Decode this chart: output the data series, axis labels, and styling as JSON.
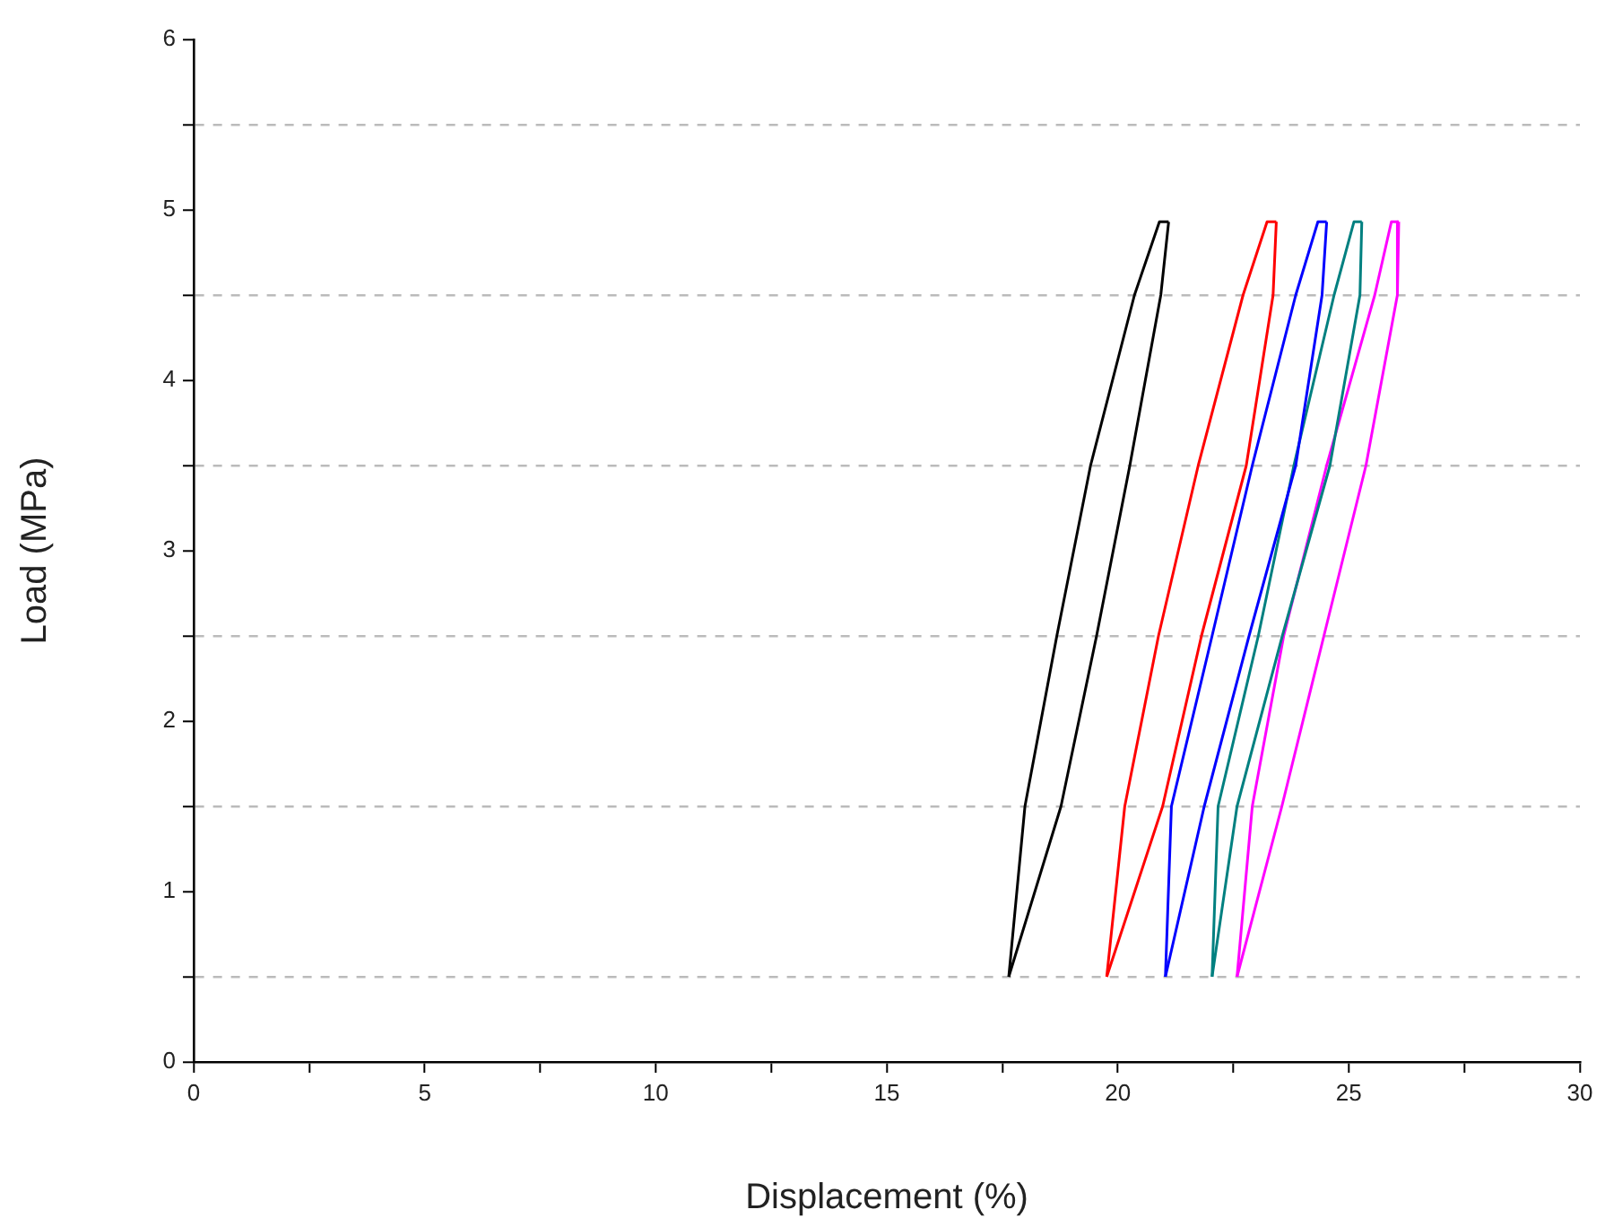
{
  "chart_data": {
    "type": "line",
    "xlabel": "Displacement (%)",
    "ylabel": "Load (MPa)",
    "xlim": [
      0,
      30
    ],
    "ylim": [
      0,
      6
    ],
    "xticks": [
      0,
      {
        "value": 2.5,
        "label": null
      },
      5,
      {
        "value": 7.5,
        "label": null
      },
      10,
      {
        "value": 12.5,
        "label": null
      },
      15,
      {
        "value": 17.5,
        "label": null
      },
      20,
      {
        "value": 22.5,
        "label": null
      },
      25,
      {
        "value": 27.5,
        "label": null
      },
      30
    ],
    "yticks": [
      0,
      {
        "value": 0.5,
        "label": null
      },
      1,
      {
        "value": 1.5,
        "label": null
      },
      2,
      {
        "value": 2.5,
        "label": null
      },
      3,
      {
        "value": 3.5,
        "label": null
      },
      4,
      {
        "value": 4.5,
        "label": null
      },
      5,
      {
        "value": 5.5,
        "label": null
      },
      6
    ],
    "grid": "y",
    "marker": "none",
    "line_style": "solid",
    "series": [
      {
        "color": "#000000",
        "x": [
          17.64,
          17.99,
          18.68,
          19.41,
          20.36,
          20.9,
          21.1
        ],
        "values": [
          0.5,
          1.5,
          2.5,
          3.5,
          4.5,
          4.93,
          4.93
        ]
      },
      {
        "color": "#000000",
        "x": [
          21.1,
          20.93,
          20.26,
          19.54,
          18.77,
          17.64
        ],
        "values": [
          4.93,
          4.5,
          3.5,
          2.5,
          1.5,
          0.5
        ]
      },
      {
        "color": "#ff0000",
        "x": [
          19.76,
          20.15,
          20.88,
          21.74,
          22.71,
          23.23,
          23.43
        ],
        "values": [
          0.5,
          1.5,
          2.5,
          3.5,
          4.5,
          4.93,
          4.93
        ]
      },
      {
        "color": "#ff0000",
        "x": [
          23.43,
          23.36,
          22.78,
          21.81,
          20.97,
          19.76
        ],
        "values": [
          4.93,
          4.5,
          3.5,
          2.5,
          1.5,
          0.5
        ]
      },
      {
        "color": "#0000ff",
        "x": [
          21.03,
          21.16,
          22.04,
          22.91,
          23.85,
          24.33,
          24.52
        ],
        "values": [
          0.5,
          1.5,
          2.5,
          3.5,
          4.5,
          4.93,
          4.93
        ]
      },
      {
        "color": "#0000ff",
        "x": [
          24.52,
          24.42,
          23.85,
          22.84,
          21.87,
          21.03
        ],
        "values": [
          4.93,
          4.5,
          3.5,
          2.5,
          1.5,
          0.5
        ]
      },
      {
        "color": "#008080",
        "x": [
          22.04,
          22.17,
          23.04,
          23.81,
          24.68,
          25.11,
          25.28
        ],
        "values": [
          0.5,
          1.5,
          2.5,
          3.5,
          4.5,
          4.93,
          4.93
        ]
      },
      {
        "color": "#008080",
        "x": [
          25.28,
          25.24,
          24.59,
          23.56,
          22.58,
          22.04
        ],
        "values": [
          4.93,
          4.5,
          3.5,
          2.5,
          1.5,
          0.5
        ]
      },
      {
        "color": "#ff00ff",
        "x": [
          22.58,
          22.91,
          23.59,
          24.52,
          25.56,
          25.92,
          26.08
        ],
        "values": [
          0.5,
          1.5,
          2.5,
          3.5,
          4.5,
          4.93,
          4.93
        ]
      },
      {
        "color": "#ff00ff",
        "x": [
          26.08,
          26.05,
          25.37,
          24.46,
          23.55,
          22.58
        ],
        "values": [
          4.93,
          4.5,
          3.5,
          2.5,
          1.5,
          0.5
        ]
      }
    ]
  }
}
